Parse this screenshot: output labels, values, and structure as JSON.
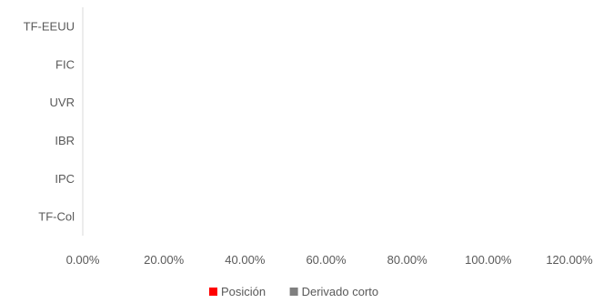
{
  "chart_data": {
    "type": "bar",
    "orientation": "horizontal",
    "categories": [
      "TF-EEUU",
      "FIC",
      "UVR",
      "IBR",
      "IPC",
      "TF-Col"
    ],
    "series": [
      {
        "name": "Posición",
        "color": "#ff0000",
        "values": [
          0,
          0,
          0,
          0,
          0,
          0
        ]
      },
      {
        "name": "Derivado corto",
        "color": "#7f7f7f",
        "values": [
          0,
          0,
          0,
          0,
          0,
          0
        ]
      }
    ],
    "xlim": [
      0,
      1.2
    ],
    "xticks": [
      "0.00%",
      "20.00%",
      "40.00%",
      "60.00%",
      "80.00%",
      "100.00%",
      "120.00%"
    ],
    "grid": false,
    "legend_position": "bottom"
  }
}
